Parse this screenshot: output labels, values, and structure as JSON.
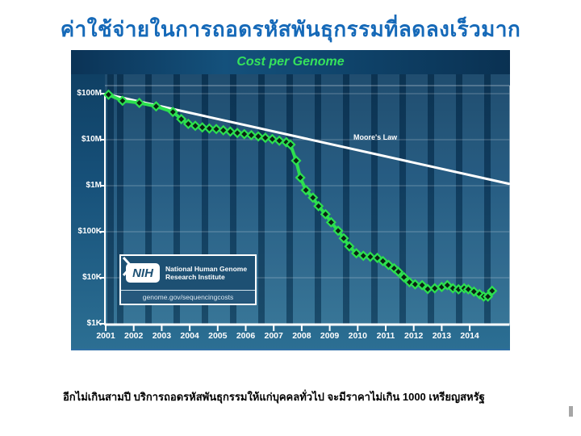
{
  "page": {
    "title_thai": "ค่าใช้จ่ายในการถอดรหัสพันธุกรรมที่ลดลงเร็วมาก",
    "caption_thai": "อีกไม่เกินสามปี บริการถอดรหัสพันธุกรรมให้แก่บุคคลทั่วไป จะมีราคาไม่เกิน 1000 เหรียญสหรัฐ",
    "title_color": "#1569b8"
  },
  "chart": {
    "header": "Cost per Genome",
    "moores_law_label": "Moore's Law",
    "logo": {
      "acronym": "NIH",
      "institute_line1": "National Human Genome",
      "institute_line2": "Research Institute",
      "url": "genome.gov/sequencingcosts"
    },
    "colors": {
      "header_text": "#35e25c",
      "curve": "#2ce04f",
      "marker_fill": "#0b2013",
      "moores_law_line": "#ffffff",
      "axis": "#ffffff",
      "plot_bg_top": "#0d3c5f",
      "plot_bg_bottom": "#2c6f93"
    }
  },
  "chart_data": {
    "type": "line",
    "title": "Cost per Genome",
    "y_scale": "log",
    "grid": true,
    "xlim": [
      2000.9,
      2015.5
    ],
    "ylim": [
      1000,
      100000000
    ],
    "x_ticks": [
      2001,
      2002,
      2003,
      2004,
      2005,
      2006,
      2007,
      2008,
      2009,
      2010,
      2011,
      2012,
      2013,
      2014
    ],
    "y_tick_labels": [
      "$100M",
      "$10M",
      "$1M",
      "$100K",
      "$10K",
      "$1K"
    ],
    "y_tick_values": [
      100000000,
      10000000,
      1000000,
      100000,
      10000,
      1000
    ],
    "series": [
      {
        "name": "Cost per Genome",
        "marker": "diamond",
        "points": [
          [
            2001.1,
            95000000
          ],
          [
            2001.6,
            70000000
          ],
          [
            2002.2,
            63000000
          ],
          [
            2002.8,
            53000000
          ],
          [
            2003.4,
            40000000
          ],
          [
            2003.7,
            28000000
          ],
          [
            2003.95,
            22000000
          ],
          [
            2004.2,
            20000000
          ],
          [
            2004.45,
            18500000
          ],
          [
            2004.7,
            17500000
          ],
          [
            2004.95,
            17000000
          ],
          [
            2005.2,
            16000000
          ],
          [
            2005.45,
            15000000
          ],
          [
            2005.7,
            14000000
          ],
          [
            2005.95,
            13200000
          ],
          [
            2006.2,
            12500000
          ],
          [
            2006.45,
            11800000
          ],
          [
            2006.7,
            11000000
          ],
          [
            2006.95,
            10300000
          ],
          [
            2007.2,
            9500000
          ],
          [
            2007.45,
            8800000
          ],
          [
            2007.6,
            7800000
          ],
          [
            2007.8,
            3500000
          ],
          [
            2007.95,
            1500000
          ],
          [
            2008.15,
            800000
          ],
          [
            2008.4,
            550000
          ],
          [
            2008.6,
            360000
          ],
          [
            2008.85,
            240000
          ],
          [
            2009.05,
            160000
          ],
          [
            2009.3,
            105000
          ],
          [
            2009.5,
            72000
          ],
          [
            2009.7,
            48000
          ],
          [
            2009.95,
            34000
          ],
          [
            2010.2,
            30000
          ],
          [
            2010.45,
            28500
          ],
          [
            2010.7,
            27000
          ],
          [
            2010.9,
            23000
          ],
          [
            2011.1,
            19000
          ],
          [
            2011.3,
            16000
          ],
          [
            2011.45,
            13500
          ],
          [
            2011.65,
            10300
          ],
          [
            2011.85,
            8000
          ],
          [
            2012.05,
            7200
          ],
          [
            2012.3,
            6900
          ],
          [
            2012.5,
            5700
          ],
          [
            2012.75,
            5900
          ],
          [
            2013.0,
            6300
          ],
          [
            2013.2,
            6900
          ],
          [
            2013.4,
            5900
          ],
          [
            2013.6,
            5600
          ],
          [
            2013.8,
            5900
          ],
          [
            2013.95,
            5600
          ],
          [
            2014.15,
            5000
          ],
          [
            2014.35,
            4400
          ],
          [
            2014.5,
            3900
          ],
          [
            2014.65,
            3900
          ],
          [
            2014.8,
            5200
          ]
        ]
      },
      {
        "name": "Moore's Law",
        "marker": "none",
        "points": [
          [
            2001.1,
            95000000
          ],
          [
            2015.4,
            1100000
          ]
        ]
      }
    ]
  }
}
